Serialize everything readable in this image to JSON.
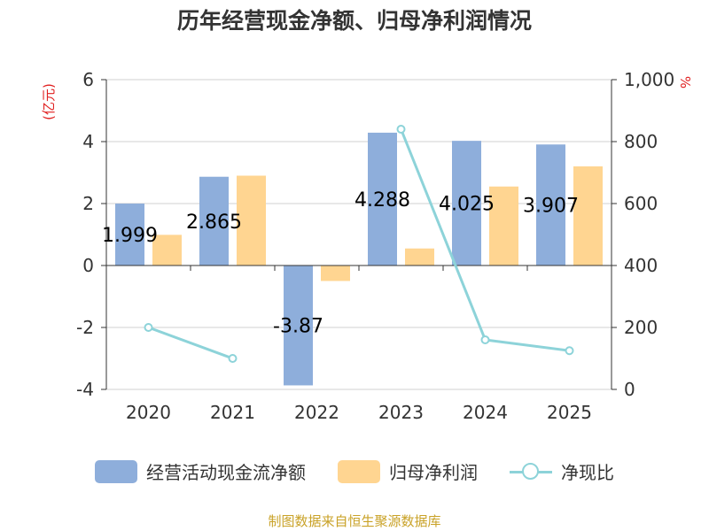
{
  "chart_data": {
    "type": "bar",
    "title": "历年经营现金净额、归母净利润情况",
    "categories": [
      "2020",
      "2021",
      "2022",
      "2023",
      "2024",
      "2025"
    ],
    "left_axis": {
      "unit_label": "(亿元)",
      "ylim": [
        -4,
        6
      ],
      "ticks": [
        "6",
        "4",
        "2",
        "0",
        "-2",
        "-4"
      ],
      "tick_values": [
        6,
        4,
        2,
        0,
        -2,
        -4
      ]
    },
    "right_axis": {
      "unit_label": "%",
      "ylim": [
        0,
        1000
      ],
      "ticks": [
        "1,000",
        "800",
        "600",
        "400",
        "200",
        "0"
      ],
      "tick_values": [
        1000,
        800,
        600,
        400,
        200,
        0
      ]
    },
    "series": [
      {
        "name": "经营活动现金流净额",
        "type": "bar",
        "axis": "left",
        "color": "#8eaedb",
        "values": [
          1.999,
          2.865,
          -3.87,
          4.288,
          4.025,
          3.907
        ],
        "labels": [
          "1.999",
          "2.865",
          "-3.87",
          "4.288",
          "4.025",
          "3.907"
        ]
      },
      {
        "name": "归母净利润",
        "type": "bar",
        "axis": "left",
        "color": "#ffd591",
        "values": [
          0.99,
          2.9,
          -0.5,
          0.55,
          2.55,
          3.2
        ]
      },
      {
        "name": "净现比",
        "type": "line",
        "axis": "right",
        "color": "#8dd3d9",
        "values": [
          200,
          100,
          null,
          840,
          160,
          125
        ]
      }
    ]
  },
  "source": "制图数据来自恒生聚源数据库"
}
